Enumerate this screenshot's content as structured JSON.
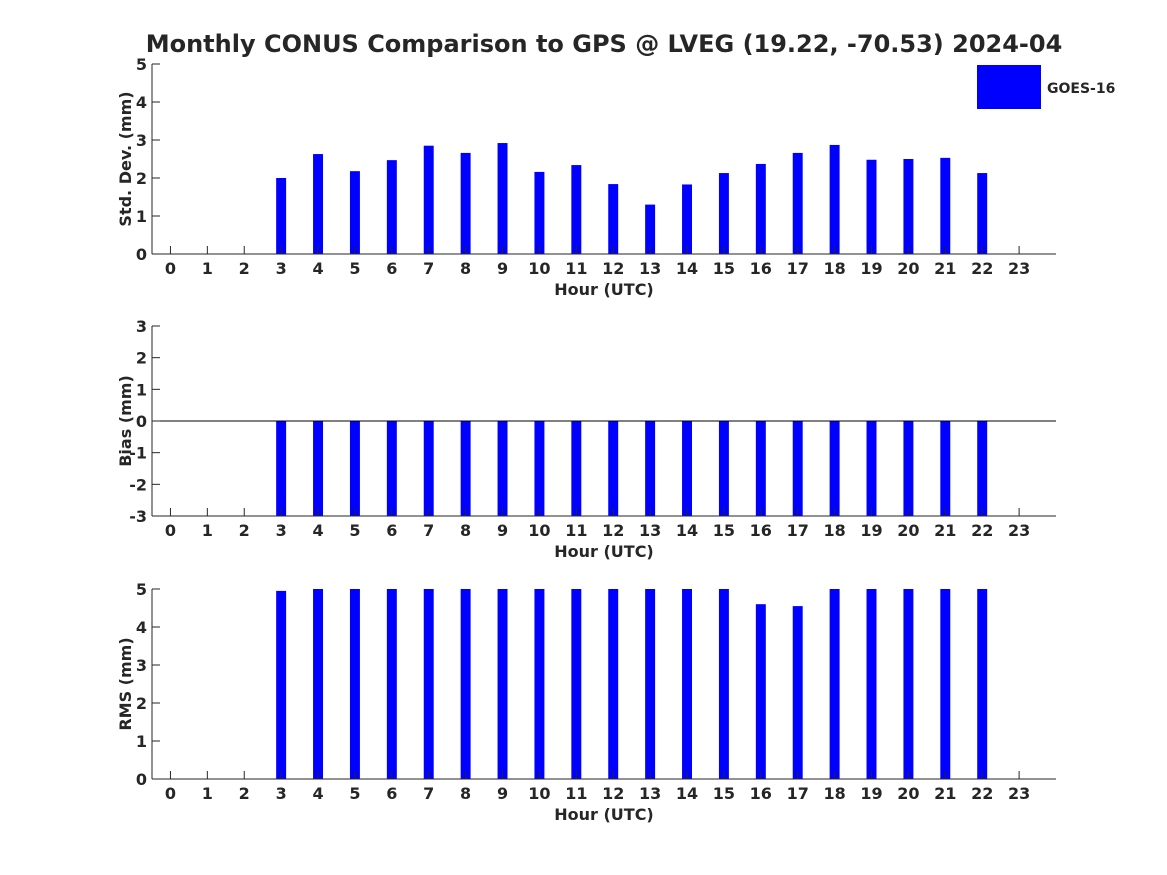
{
  "chart_data": {
    "title": "Monthly CONUS Comparison to GPS @ LVEG (19.22, -70.53) 2024-04",
    "legend": {
      "label": "GOES-16",
      "color": "#0000ff",
      "placement": "top-right"
    },
    "bar_color": "#0000ff",
    "panels": [
      {
        "type": "bar",
        "xlabel": "Hour (UTC)",
        "ylabel": "Std. Dev. (mm)",
        "ylim": [
          0,
          5
        ],
        "yticks": [
          "0",
          "1",
          "2",
          "3",
          "4",
          "5"
        ],
        "categories": [
          "0",
          "1",
          "2",
          "3",
          "4",
          "5",
          "6",
          "7",
          "8",
          "9",
          "10",
          "11",
          "12",
          "13",
          "14",
          "15",
          "16",
          "17",
          "18",
          "19",
          "20",
          "21",
          "22",
          "23"
        ],
        "values": [
          null,
          null,
          null,
          2.0,
          2.63,
          2.18,
          2.47,
          2.85,
          2.66,
          2.92,
          2.16,
          2.34,
          1.84,
          1.3,
          1.83,
          2.13,
          2.37,
          2.66,
          2.87,
          2.48,
          2.5,
          2.53,
          2.13,
          null
        ]
      },
      {
        "type": "bar",
        "xlabel": "Hour (UTC)",
        "ylabel": "Bias (mm)",
        "ylim": [
          -3,
          3
        ],
        "yticks": [
          "-3",
          "-2",
          "-1",
          "0",
          "1",
          "2",
          "3"
        ],
        "zero_line": true,
        "categories": [
          "0",
          "1",
          "2",
          "3",
          "4",
          "5",
          "6",
          "7",
          "8",
          "9",
          "10",
          "11",
          "12",
          "13",
          "14",
          "15",
          "16",
          "17",
          "18",
          "19",
          "20",
          "21",
          "22",
          "23"
        ],
        "values": [
          null,
          null,
          null,
          -3,
          -3,
          -3,
          -3,
          -3,
          -3,
          -3,
          -3,
          -3,
          -3,
          -3,
          -3,
          -3,
          -3,
          -3,
          -3,
          -3,
          -3,
          -3,
          -3,
          null
        ]
      },
      {
        "type": "bar",
        "xlabel": "Hour (UTC)",
        "ylabel": "RMS (mm)",
        "ylim": [
          0,
          5
        ],
        "yticks": [
          "0",
          "1",
          "2",
          "3",
          "4",
          "5"
        ],
        "categories": [
          "0",
          "1",
          "2",
          "3",
          "4",
          "5",
          "6",
          "7",
          "8",
          "9",
          "10",
          "11",
          "12",
          "13",
          "14",
          "15",
          "16",
          "17",
          "18",
          "19",
          "20",
          "21",
          "22",
          "23"
        ],
        "values": [
          null,
          null,
          null,
          4.95,
          5,
          5,
          5,
          5,
          5,
          5,
          5,
          5,
          5,
          5,
          5,
          5,
          4.6,
          4.55,
          5,
          5,
          5,
          5,
          5,
          null
        ]
      }
    ]
  }
}
